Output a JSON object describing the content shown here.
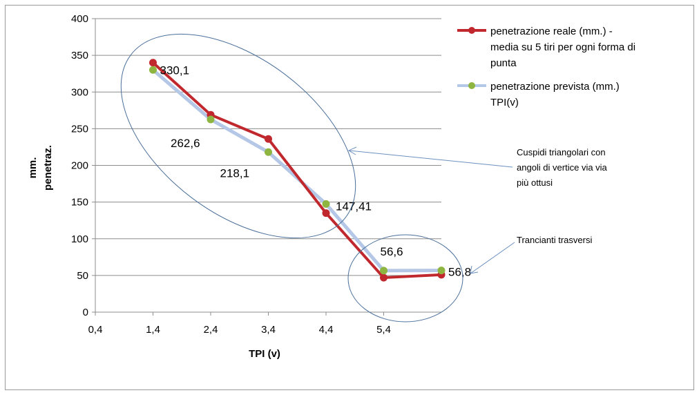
{
  "chart_data": {
    "type": "line",
    "title": "",
    "xlabel": "TPI (v)",
    "ylabel_lines": [
      "mm.",
      "penetraz."
    ],
    "xlim": [
      0.4,
      6.4
    ],
    "ylim": [
      0,
      400
    ],
    "x_ticks": [
      "0,4",
      "1,4",
      "2,4",
      "3,4",
      "4,4",
      "5,4"
    ],
    "y_ticks": [
      "0",
      "50",
      "100",
      "150",
      "200",
      "250",
      "300",
      "350",
      "400"
    ],
    "grid": true,
    "legend_position": "top-right",
    "x": [
      1.4,
      2.4,
      3.4,
      4.4,
      5.4,
      6.4
    ],
    "series": [
      {
        "name_lines": [
          "penetrazione reale (mm.) -",
          "media su 5 tiri per ogni forma di",
          "punta"
        ],
        "color": "#C0282D",
        "values": [
          340,
          269,
          236,
          135,
          47,
          51
        ]
      },
      {
        "name_lines": [
          "penetrazione prevista (mm.)",
          "TPI(v)"
        ],
        "color": "#B4C7E7",
        "marker_color": "#8DB540",
        "values": [
          330.1,
          262.6,
          218.1,
          147.41,
          56.6,
          56.8
        ],
        "labels": [
          "330,1",
          "262,6",
          "218,1",
          "147,41",
          "56,6",
          "56,8"
        ]
      }
    ],
    "annotations": [
      {
        "lines": [
          "Cuspidi triangolari con",
          "angoli di vertice via via",
          "più ottusi"
        ]
      },
      {
        "lines": [
          "Trancianti trasversi"
        ]
      }
    ]
  }
}
